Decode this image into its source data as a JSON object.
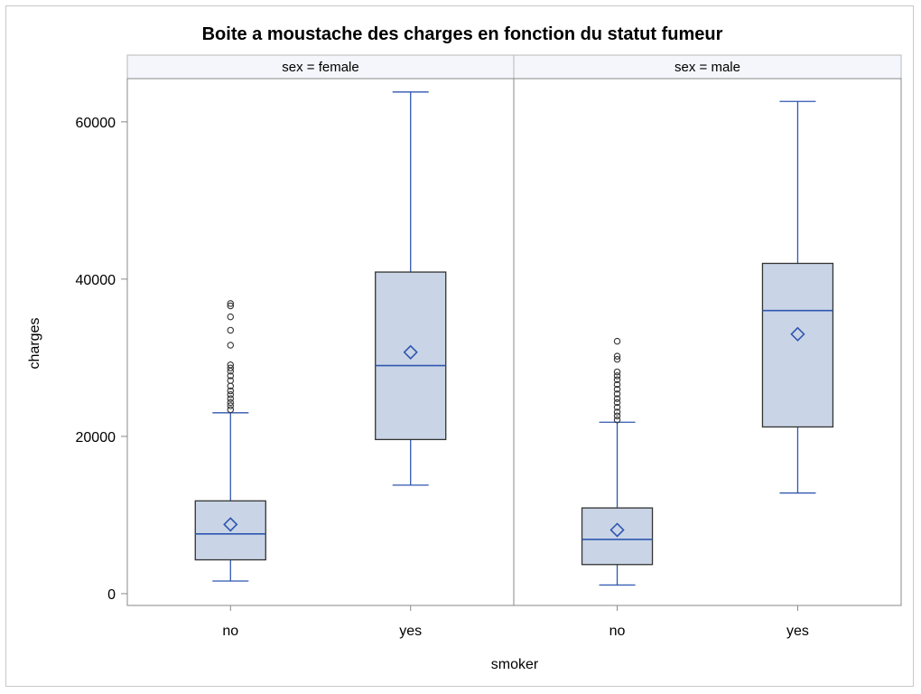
{
  "chart_data": {
    "type": "boxplot",
    "title": "Boite a moustache des charges en fonction du statut fumeur",
    "xlabel": "smoker",
    "ylabel": "charges",
    "ylim": [
      -1500,
      65500
    ],
    "yticks": [
      0,
      20000,
      40000,
      60000
    ],
    "categories": [
      "no",
      "yes"
    ],
    "colors": {
      "box_fill": "#c9d5e6",
      "box_edge": "#333333",
      "median": "#2f56b0",
      "whisker": "#2f56b0",
      "mean_marker": "#2f56b0",
      "outlier": "#333333",
      "panel_header_bg": "#f4f6fb",
      "axis": "#888888"
    },
    "panels": [
      {
        "label": "sex = female",
        "boxes": [
          {
            "category": "no",
            "whisker_low": 1600,
            "q1": 4300,
            "median": 7600,
            "q3": 11800,
            "whisker_high": 23000,
            "mean": 8800,
            "outliers": [
              23400,
              23900,
              24300,
              24800,
              25300,
              25800,
              26400,
              27100,
              27700,
              28300,
              28700,
              29100,
              31600,
              33500,
              35200,
              36600,
              36900
            ]
          },
          {
            "category": "yes",
            "whisker_low": 13800,
            "q1": 19600,
            "median": 29000,
            "q3": 40900,
            "whisker_high": 63800,
            "mean": 30700,
            "outliers": []
          }
        ]
      },
      {
        "label": "sex = male",
        "boxes": [
          {
            "category": "no",
            "whisker_low": 1100,
            "q1": 3700,
            "median": 6900,
            "q3": 10900,
            "whisker_high": 21800,
            "mean": 8100,
            "outliers": [
              22100,
              22600,
              23100,
              23700,
              24300,
              24800,
              25400,
              26000,
              26600,
              27200,
              27700,
              28200,
              29800,
              30200,
              32100
            ]
          },
          {
            "category": "yes",
            "whisker_low": 12800,
            "q1": 21200,
            "median": 36000,
            "q3": 42000,
            "whisker_high": 62600,
            "mean": 33000,
            "outliers": []
          }
        ]
      }
    ]
  }
}
